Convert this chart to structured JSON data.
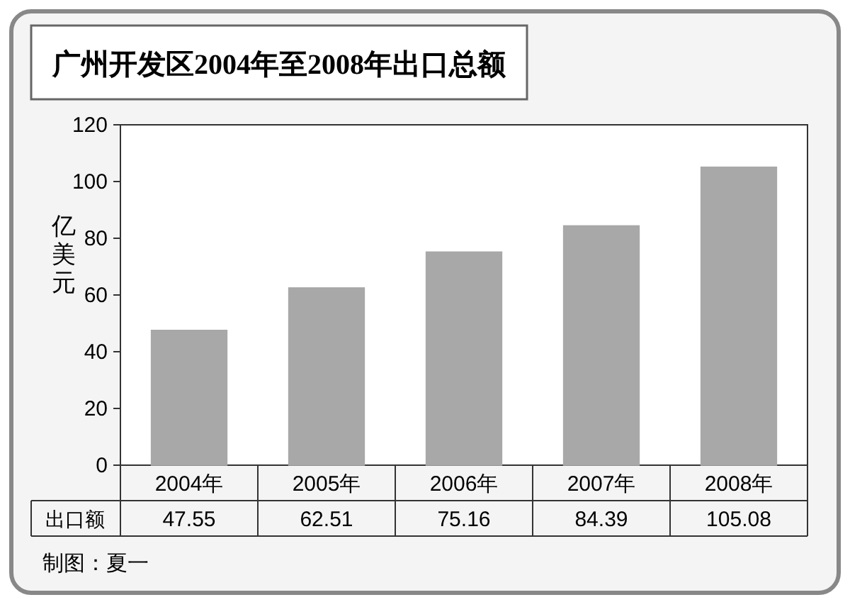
{
  "chart_data": {
    "type": "bar",
    "title": "广州开发区2004年至2008年出口总额",
    "ylabel": "亿美元",
    "categories": [
      "2004年",
      "2005年",
      "2006年",
      "2007年",
      "2008年"
    ],
    "series": [
      {
        "name": "出口额",
        "color": "#a8a8a8",
        "values": [
          47.55,
          62.51,
          75.16,
          84.39,
          105.08
        ]
      }
    ],
    "ylim": [
      0,
      120
    ],
    "yticks": [
      0,
      20,
      40,
      60,
      80,
      100,
      120
    ],
    "data_labels": true,
    "annotations": [
      "制图：夏一"
    ]
  }
}
